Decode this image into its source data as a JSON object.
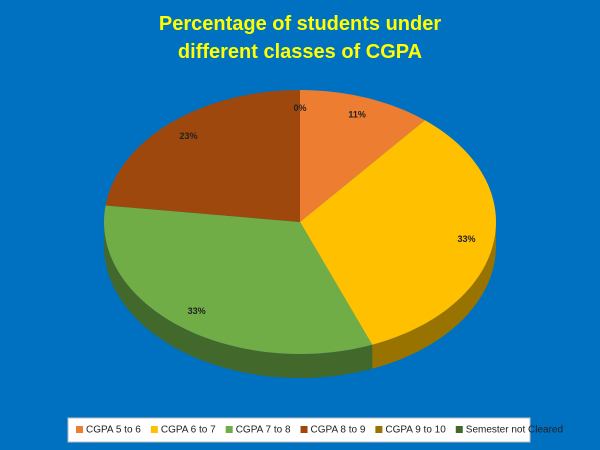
{
  "chart_data": {
    "type": "pie",
    "title": "Percentage of students under different classes of CGPA",
    "categories": [
      "CGPA 5 to 6",
      "CGPA 6 to 7",
      "CGPA 7 to 8",
      "CGPA 8 to 9",
      "CGPA 9 to 10",
      "Semester not Cleared"
    ],
    "values": [
      11,
      33,
      33,
      23,
      0,
      null
    ],
    "value_labels": [
      "11%",
      "33%",
      "33%",
      "23%",
      "0%",
      null
    ],
    "colors": [
      "#ed7d31",
      "#ffc000",
      "#70ad47",
      "#9e480e",
      "#997300",
      "#43682b"
    ],
    "legend": "bottom"
  }
}
